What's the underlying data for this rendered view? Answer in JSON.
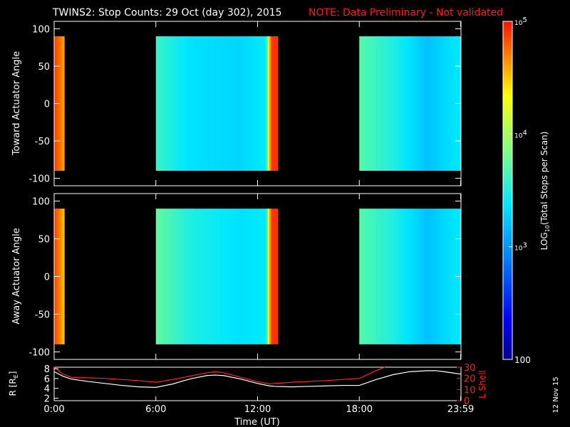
{
  "title": {
    "main": "TWINS2: Stop Counts: 29 Oct (day 302), 2015",
    "note": "NOTE: Data Preliminary - Not validated"
  },
  "colors": {
    "background": "#000000",
    "axes": "#ffffff",
    "note": "#ff1a1a",
    "r_line": "#ffffff",
    "l_shell_line": "#ff2020"
  },
  "side_date": "12 Nov 15",
  "chart_data": [
    {
      "type": "heatmap",
      "name": "toward",
      "ylabel": "Toward Actuator Angle",
      "ylim": [
        -110,
        110
      ],
      "yticks": [
        100,
        50,
        0,
        -50,
        -100
      ],
      "xlim": [
        0,
        24
      ],
      "angle_range": [
        -90,
        90
      ],
      "data_intervals_hours": [
        [
          0.0,
          0.6
        ],
        [
          6.0,
          13.2
        ],
        [
          18.0,
          24.0
        ]
      ],
      "log_counts_profile": [
        {
          "t": 0.0,
          "v": 4.9
        },
        {
          "t": 0.6,
          "v": 4.6
        },
        {
          "t": 6.0,
          "v": 3.6
        },
        {
          "t": 8.0,
          "v": 3.35
        },
        {
          "t": 11.0,
          "v": 3.3
        },
        {
          "t": 12.5,
          "v": 3.4
        },
        {
          "t": 12.8,
          "v": 4.9
        },
        {
          "t": 13.2,
          "v": 4.9
        },
        {
          "t": 18.0,
          "v": 3.7
        },
        {
          "t": 20.0,
          "v": 3.5
        },
        {
          "t": 22.0,
          "v": 3.2
        },
        {
          "t": 24.0,
          "v": 3.4
        }
      ]
    },
    {
      "type": "heatmap",
      "name": "away",
      "ylabel": "Away Actuator Angle",
      "ylim": [
        -110,
        110
      ],
      "yticks": [
        100,
        50,
        0,
        -50,
        -100
      ],
      "xlim": [
        0,
        24
      ],
      "angle_range": [
        -90,
        90
      ],
      "data_intervals_hours": [
        [
          0.0,
          0.6
        ],
        [
          6.0,
          13.2
        ],
        [
          18.0,
          24.0
        ]
      ],
      "log_counts_profile": [
        {
          "t": 0.0,
          "v": 4.9
        },
        {
          "t": 0.6,
          "v": 4.5
        },
        {
          "t": 6.0,
          "v": 3.75
        },
        {
          "t": 8.0,
          "v": 3.5
        },
        {
          "t": 11.0,
          "v": 3.35
        },
        {
          "t": 12.5,
          "v": 3.4
        },
        {
          "t": 12.8,
          "v": 4.9
        },
        {
          "t": 13.2,
          "v": 4.9
        },
        {
          "t": 18.0,
          "v": 3.7
        },
        {
          "t": 20.0,
          "v": 3.5
        },
        {
          "t": 22.0,
          "v": 3.2
        },
        {
          "t": 24.0,
          "v": 3.4
        }
      ]
    },
    {
      "type": "line",
      "name": "orbit",
      "xlabel": "Time (UT)",
      "xlim": [
        0,
        24
      ],
      "xticks": [
        {
          "v": 0,
          "label": "0:00"
        },
        {
          "v": 6,
          "label": "6:00"
        },
        {
          "v": 12,
          "label": "12:00"
        },
        {
          "v": 18,
          "label": "18:00"
        },
        {
          "v": 23.98,
          "label": "23:59"
        }
      ],
      "left_axis": {
        "label_prefix": "R [R",
        "label_sub": "E",
        "label_suffix": "]",
        "ylim": [
          1.5,
          8.3
        ],
        "ticks": [
          8,
          6,
          4,
          2
        ]
      },
      "right_axis": {
        "label": "L Shell",
        "ylim": [
          0,
          30
        ],
        "ticks": [
          30,
          20,
          10,
          0
        ]
      },
      "series": [
        {
          "key": "R",
          "x": [
            0.0,
            0.5,
            1.0,
            2.0,
            3.0,
            4.0,
            5.0,
            6.0,
            7.0,
            8.0,
            9.0,
            9.5,
            10.0,
            11.0,
            12.0,
            12.7,
            13.0,
            14.0,
            15.0,
            16.0,
            17.0,
            18.0,
            19.0,
            20.0,
            21.0,
            22.0,
            22.5,
            23.0,
            23.98
          ],
          "y": [
            7.4,
            6.5,
            5.9,
            5.4,
            5.0,
            4.6,
            4.3,
            4.2,
            4.9,
            5.9,
            6.6,
            6.7,
            6.6,
            5.9,
            5.0,
            4.5,
            4.4,
            4.3,
            4.4,
            4.5,
            4.6,
            4.6,
            5.8,
            6.8,
            7.4,
            7.6,
            7.6,
            7.4,
            6.9
          ]
        },
        {
          "key": "L_Shell",
          "x": [
            0.0,
            0.5,
            1.0,
            3.0,
            5.0,
            6.0,
            7.0,
            8.0,
            9.0,
            9.5,
            10.0,
            11.0,
            12.0,
            12.7,
            14.0,
            16.0,
            18.0,
            18.5,
            19.0,
            19.5
          ],
          "y": [
            30,
            24,
            21,
            20,
            18,
            16.5,
            19,
            22,
            25,
            26,
            25,
            21,
            17,
            15,
            16.5,
            18,
            20,
            23.5,
            27,
            30
          ]
        }
      ]
    }
  ],
  "colorbar": {
    "label": "LOG",
    "label_sub": "10",
    "label_rest": "(Total Stops per Scan)",
    "range_log": [
      2,
      5
    ],
    "ticks": [
      {
        "v": 5,
        "base": "10",
        "exp": "5"
      },
      {
        "v": 4,
        "base": "10",
        "exp": "4"
      },
      {
        "v": 3,
        "base": "10",
        "exp": "3"
      },
      {
        "v": 2,
        "label": "100"
      }
    ]
  }
}
